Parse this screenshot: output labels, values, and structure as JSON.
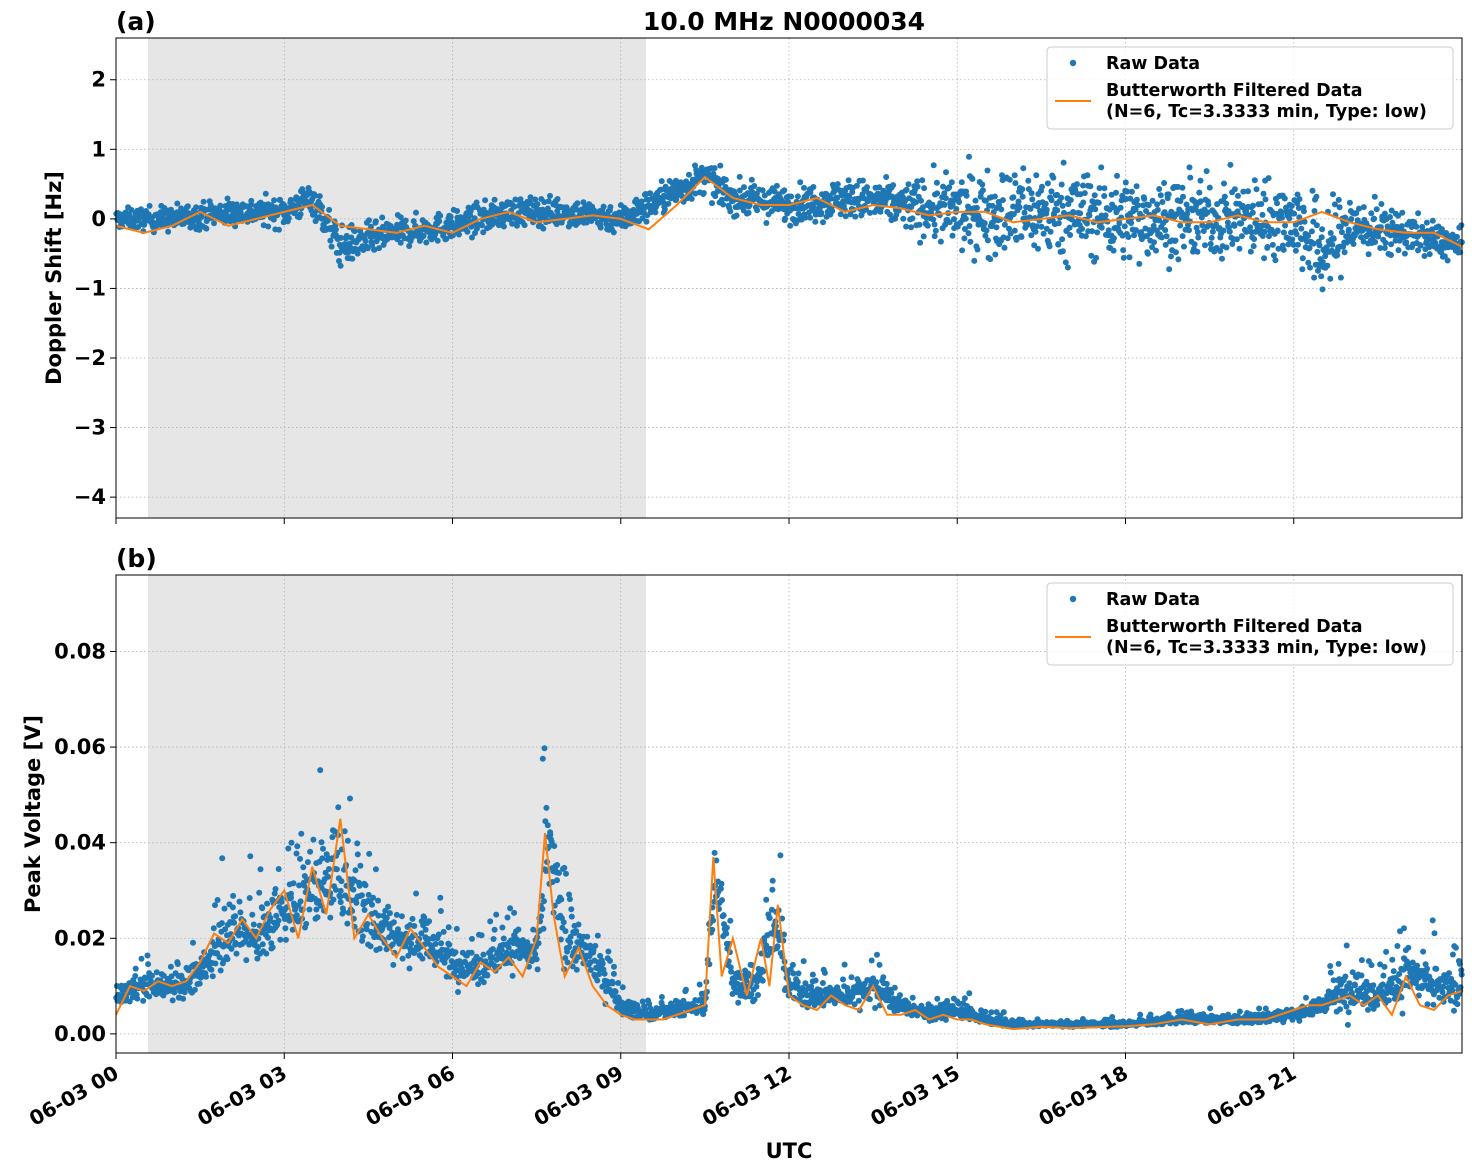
{
  "chart_data": [
    {
      "panel_label": "(a)",
      "type": "scatter",
      "title": "10.0 MHz N0000034",
      "xlabel": "",
      "ylabel": "Doppler Shift [Hz]",
      "xlim": [
        0,
        24
      ],
      "ylim": [
        -4.3,
        2.6
      ],
      "yticks": [
        2,
        1,
        0,
        -1,
        -2,
        -3,
        -4
      ],
      "ytick_labels": [
        "2",
        "1",
        "0",
        "−1",
        "−2",
        "−3",
        "−4"
      ],
      "grid": true,
      "legend_position": "top-right",
      "shaded_region": {
        "x_start": 0.57,
        "x_end": 9.45,
        "color": "#e6e6e6"
      },
      "series": [
        {
          "name": "Raw Data",
          "kind": "points",
          "color": "#1f77b4",
          "x": [
            0,
            1,
            2,
            3,
            3.5,
            4,
            5,
            6,
            7,
            8,
            9,
            10,
            10.5,
            11,
            12,
            13,
            14,
            15,
            16,
            17,
            18,
            19,
            20,
            21,
            21.5,
            22,
            23,
            24
          ],
          "y": [
            0,
            0,
            0.1,
            0.1,
            0.3,
            -0.4,
            -0.2,
            -0.1,
            0.1,
            0.1,
            0,
            0.4,
            0.6,
            0.3,
            0.2,
            0.3,
            0.2,
            0.1,
            0.1,
            0.1,
            0,
            0,
            0,
            0,
            -0.5,
            -0.1,
            -0.2,
            -0.4
          ],
          "spread": [
            0.3,
            0.4,
            0.4,
            0.45,
            0.5,
            0.6,
            0.45,
            0.45,
            0.45,
            0.45,
            0.45,
            0.5,
            0.5,
            0.5,
            0.55,
            0.6,
            0.7,
            1.2,
            1.4,
            1.4,
            1.3,
            1.2,
            1.2,
            1.2,
            1.6,
            1.0,
            0.6,
            0.5
          ]
        },
        {
          "name": "Butterworth Filtered Data\n(N=6, Tc=3.3333 min, Type: low)",
          "kind": "line",
          "color": "#ff7f0e",
          "x": [
            0,
            0.5,
            1,
            1.5,
            2,
            2.5,
            3,
            3.5,
            4,
            4.5,
            5,
            5.5,
            6,
            6.5,
            7,
            7.5,
            8,
            8.5,
            9,
            9.5,
            10,
            10.5,
            11,
            11.5,
            12,
            12.5,
            13,
            13.5,
            14,
            14.5,
            15,
            15.5,
            16,
            16.5,
            17,
            17.5,
            18,
            18.5,
            19,
            19.5,
            20,
            20.5,
            21,
            21.5,
            22,
            22.5,
            23,
            23.5,
            24
          ],
          "y": [
            -0.1,
            -0.2,
            -0.1,
            0.1,
            -0.1,
            0,
            0.1,
            0.2,
            -0.1,
            -0.15,
            -0.2,
            -0.1,
            -0.2,
            0,
            0.1,
            -0.05,
            0,
            0.05,
            0,
            -0.15,
            0.2,
            0.6,
            0.3,
            0.2,
            0.2,
            0.3,
            0.1,
            0.2,
            0.15,
            0.05,
            0.1,
            0.1,
            -0.05,
            0,
            0.05,
            -0.05,
            0,
            0.05,
            -0.05,
            -0.05,
            0.05,
            -0.05,
            -0.05,
            0.1,
            -0.05,
            -0.15,
            -0.2,
            -0.2,
            -0.4
          ]
        }
      ]
    },
    {
      "panel_label": "(b)",
      "type": "scatter",
      "title": "",
      "xlabel": "UTC",
      "ylabel": "Peak Voltage [V]",
      "xlim": [
        0,
        24
      ],
      "ylim": [
        -0.004,
        0.096
      ],
      "yticks": [
        0.08,
        0.06,
        0.04,
        0.02,
        0.0
      ],
      "ytick_labels": [
        "0.08",
        "0.06",
        "0.04",
        "0.02",
        "0.00"
      ],
      "x_ticks": [
        0,
        3,
        6,
        9,
        12,
        15,
        18,
        21
      ],
      "x_tick_labels": [
        "06-03 00",
        "06-03 03",
        "06-03 06",
        "06-03 09",
        "06-03 12",
        "06-03 15",
        "06-03 18",
        "06-03 21"
      ],
      "grid": true,
      "legend_position": "top-right",
      "shaded_region": {
        "x_start": 0.57,
        "x_end": 9.45,
        "color": "#e6e6e6"
      },
      "series": [
        {
          "name": "Raw Data",
          "kind": "points",
          "color": "#1f77b4",
          "x": [
            0,
            0.5,
            1,
            1.5,
            2,
            2.5,
            3,
            3.5,
            4,
            4.5,
            5,
            5.5,
            6,
            6.5,
            7,
            7.5,
            7.7,
            8,
            8.5,
            9,
            9.5,
            10,
            10.5,
            10.7,
            11,
            11.5,
            11.7,
            12,
            12.5,
            13,
            13.5,
            14,
            14.5,
            15,
            15.5,
            16,
            17,
            18,
            19,
            20,
            21,
            21.5,
            22,
            22.5,
            23,
            23.5,
            24
          ],
          "y": [
            0.008,
            0.01,
            0.01,
            0.012,
            0.022,
            0.02,
            0.025,
            0.03,
            0.035,
            0.025,
            0.02,
            0.02,
            0.015,
            0.014,
            0.018,
            0.016,
            0.04,
            0.02,
            0.016,
            0.006,
            0.004,
            0.005,
            0.006,
            0.035,
            0.01,
            0.012,
            0.025,
            0.01,
            0.008,
            0.008,
            0.01,
            0.006,
            0.004,
            0.005,
            0.003,
            0.002,
            0.002,
            0.002,
            0.003,
            0.003,
            0.004,
            0.006,
            0.01,
            0.008,
            0.012,
            0.01,
            0.009
          ],
          "spread": [
            0.005,
            0.006,
            0.006,
            0.007,
            0.012,
            0.012,
            0.014,
            0.018,
            0.025,
            0.016,
            0.012,
            0.012,
            0.009,
            0.008,
            0.01,
            0.01,
            0.03,
            0.012,
            0.01,
            0.004,
            0.003,
            0.003,
            0.004,
            0.02,
            0.008,
            0.01,
            0.02,
            0.008,
            0.005,
            0.005,
            0.008,
            0.004,
            0.003,
            0.004,
            0.002,
            0.001,
            0.001,
            0.001,
            0.002,
            0.002,
            0.003,
            0.004,
            0.012,
            0.006,
            0.014,
            0.01,
            0.007
          ]
        },
        {
          "name": "Butterworth Filtered Data\n(N=6, Tc=3.3333 min, Type: low)",
          "kind": "line",
          "color": "#ff7f0e",
          "x": [
            0,
            0.25,
            0.5,
            0.75,
            1,
            1.25,
            1.5,
            1.75,
            2,
            2.25,
            2.5,
            2.75,
            3,
            3.25,
            3.5,
            3.75,
            4,
            4.25,
            4.5,
            4.75,
            5,
            5.25,
            5.5,
            5.75,
            6,
            6.25,
            6.5,
            6.75,
            7,
            7.25,
            7.5,
            7.65,
            7.8,
            8,
            8.25,
            8.5,
            8.75,
            9,
            9.25,
            9.5,
            9.75,
            10,
            10.25,
            10.5,
            10.65,
            10.8,
            11,
            11.25,
            11.5,
            11.65,
            11.8,
            12,
            12.25,
            12.5,
            12.75,
            13,
            13.25,
            13.5,
            13.75,
            14,
            14.25,
            14.5,
            14.75,
            15,
            15.25,
            15.5,
            16,
            16.5,
            17,
            17.5,
            18,
            18.5,
            19,
            19.5,
            20,
            20.5,
            21,
            21.25,
            21.5,
            21.75,
            22,
            22.25,
            22.5,
            22.75,
            23,
            23.25,
            23.5,
            23.75,
            24
          ],
          "y": [
            0.004,
            0.01,
            0.009,
            0.011,
            0.01,
            0.011,
            0.015,
            0.021,
            0.019,
            0.024,
            0.02,
            0.026,
            0.03,
            0.02,
            0.035,
            0.025,
            0.045,
            0.02,
            0.025,
            0.02,
            0.016,
            0.022,
            0.018,
            0.014,
            0.012,
            0.01,
            0.015,
            0.013,
            0.016,
            0.012,
            0.02,
            0.042,
            0.025,
            0.012,
            0.018,
            0.01,
            0.006,
            0.004,
            0.003,
            0.003,
            0.003,
            0.004,
            0.005,
            0.006,
            0.037,
            0.012,
            0.02,
            0.008,
            0.02,
            0.01,
            0.027,
            0.008,
            0.006,
            0.005,
            0.008,
            0.006,
            0.005,
            0.01,
            0.004,
            0.004,
            0.005,
            0.003,
            0.004,
            0.003,
            0.003,
            0.002,
            0.001,
            0.0015,
            0.0012,
            0.0014,
            0.0016,
            0.002,
            0.003,
            0.002,
            0.003,
            0.003,
            0.005,
            0.006,
            0.006,
            0.007,
            0.008,
            0.006,
            0.008,
            0.004,
            0.012,
            0.006,
            0.005,
            0.008,
            0.009
          ]
        }
      ]
    }
  ]
}
